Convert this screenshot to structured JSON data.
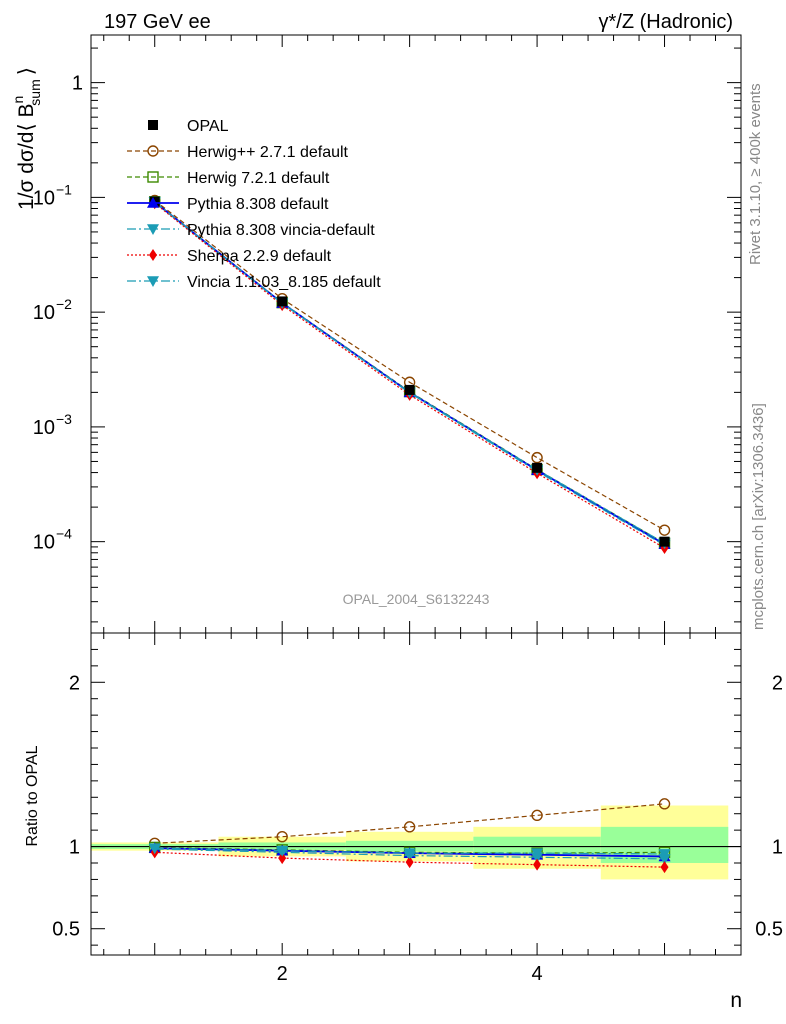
{
  "header": {
    "left": "197 GeV ee",
    "right": "γ*/Z (Hadronic)"
  },
  "side_labels": {
    "rivet": "Rivet 3.1.10, ≥ 400k events",
    "mcplots": "mcplots.cern.ch [arXiv:1306.3436]"
  },
  "watermark": "OPAL_2004_S6132243",
  "chart_data": {
    "type": "line",
    "x": [
      1,
      2,
      3,
      4,
      5
    ],
    "xlabel": "n",
    "xlim": [
      0.5,
      5.6
    ],
    "xticks": [
      2,
      4
    ],
    "main": {
      "ylabel": "1/σ dσ/d⟨ Bⁿsum ⟩",
      "ylabel_main": "1/σ dσ/d⟨ B",
      "ylabel_sup": "n",
      "ylabel_sub": "sum",
      "ylabel_close": "⟩",
      "yscale": "log",
      "ylim": [
        1.6e-05,
        2.6
      ],
      "ytick_labels": [
        {
          "value": 1,
          "base": "1",
          "exp": ""
        },
        {
          "value": 0.1,
          "base": "10",
          "exp": "−1"
        },
        {
          "value": 0.01,
          "base": "10",
          "exp": "−2"
        },
        {
          "value": 0.001,
          "base": "10",
          "exp": "−3"
        },
        {
          "value": 0.0001,
          "base": "10",
          "exp": "−4"
        }
      ]
    },
    "ratio": {
      "ylabel": "Ratio to OPAL",
      "ylim": [
        0.34,
        2.3
      ],
      "yticks": [
        "0.5",
        "1",
        "2"
      ],
      "bands": [
        {
          "x0": 0.5,
          "x1": 1.5,
          "stat_lo": 0.985,
          "stat_hi": 1.015,
          "tot_lo": 0.975,
          "tot_hi": 1.025
        },
        {
          "x0": 1.5,
          "x1": 2.5,
          "stat_lo": 0.98,
          "stat_hi": 1.025,
          "tot_lo": 0.94,
          "tot_hi": 1.06
        },
        {
          "x0": 2.5,
          "x1": 3.5,
          "stat_lo": 0.97,
          "stat_hi": 1.035,
          "tot_lo": 0.91,
          "tot_hi": 1.09
        },
        {
          "x0": 3.5,
          "x1": 4.5,
          "stat_lo": 0.95,
          "stat_hi": 1.06,
          "tot_lo": 0.865,
          "tot_hi": 1.12
        },
        {
          "x0": 4.5,
          "x1": 5.5,
          "stat_lo": 0.9,
          "stat_hi": 1.12,
          "tot_lo": 0.8,
          "tot_hi": 1.25
        }
      ]
    },
    "data": {
      "name": "OPAL",
      "values": [
        0.092,
        0.0124,
        0.0021,
        0.00044,
        0.0001
      ]
    },
    "series": [
      {
        "name": "Herwig++ 2.7.1 default",
        "color": "#8b4500",
        "dash": "5,3",
        "marker": "open-circle",
        "values": [
          0.094,
          0.0131,
          0.00245,
          0.00054,
          0.000126
        ],
        "ratio": [
          1.02,
          1.06,
          1.12,
          1.19,
          1.26
        ]
      },
      {
        "name": "Herwig 7.2.1 default",
        "color": "#3d8a00",
        "dash": "5,3",
        "marker": "open-square",
        "values": [
          0.0915,
          0.0121,
          0.00203,
          0.000425,
          9.7e-05
        ],
        "ratio": [
          0.995,
          0.98,
          0.965,
          0.96,
          0.965
        ]
      },
      {
        "name": "Pythia 8.308 default",
        "color": "#0000ee",
        "dash": "",
        "marker": "filled-triangle-up",
        "values": [
          0.091,
          0.012,
          0.002,
          0.00042,
          9.5e-05
        ],
        "ratio": [
          0.99,
          0.975,
          0.96,
          0.95,
          0.94
        ]
      },
      {
        "name": "Pythia 8.308 vincia-default",
        "color": "#1b9cb5",
        "dash": "9,3,2,3",
        "marker": "filled-triangle-down",
        "values": [
          0.0908,
          0.0119,
          0.00198,
          0.00041,
          9.3e-05
        ],
        "ratio": [
          0.985,
          0.965,
          0.945,
          0.935,
          0.925
        ]
      },
      {
        "name": "Sherpa 2.2.9 default",
        "color": "#ee0000",
        "dash": "2,2",
        "marker": "filled-diamond",
        "values": [
          0.089,
          0.0115,
          0.0019,
          0.000395,
          8.8e-05
        ],
        "ratio": [
          0.965,
          0.93,
          0.905,
          0.89,
          0.875
        ]
      },
      {
        "name": "Vincia 1.1.03_8.185 default",
        "color": "#1b9cb5",
        "dash": "9,3,2,3",
        "marker": "filled-triangle-down",
        "values": [
          0.0912,
          0.012,
          0.002,
          0.000423,
          9.7e-05
        ],
        "ratio": [
          0.99,
          0.975,
          0.96,
          0.96,
          0.955
        ]
      }
    ],
    "legend": {
      "placement": "top-left",
      "entries": [
        "OPAL",
        "Herwig++ 2.7.1 default",
        "Herwig 7.2.1 default",
        "Pythia 8.308 default",
        "Pythia 8.308 vincia-default",
        "Sherpa 2.2.9 default",
        "Vincia 1.1.03_8.185 default"
      ]
    }
  }
}
